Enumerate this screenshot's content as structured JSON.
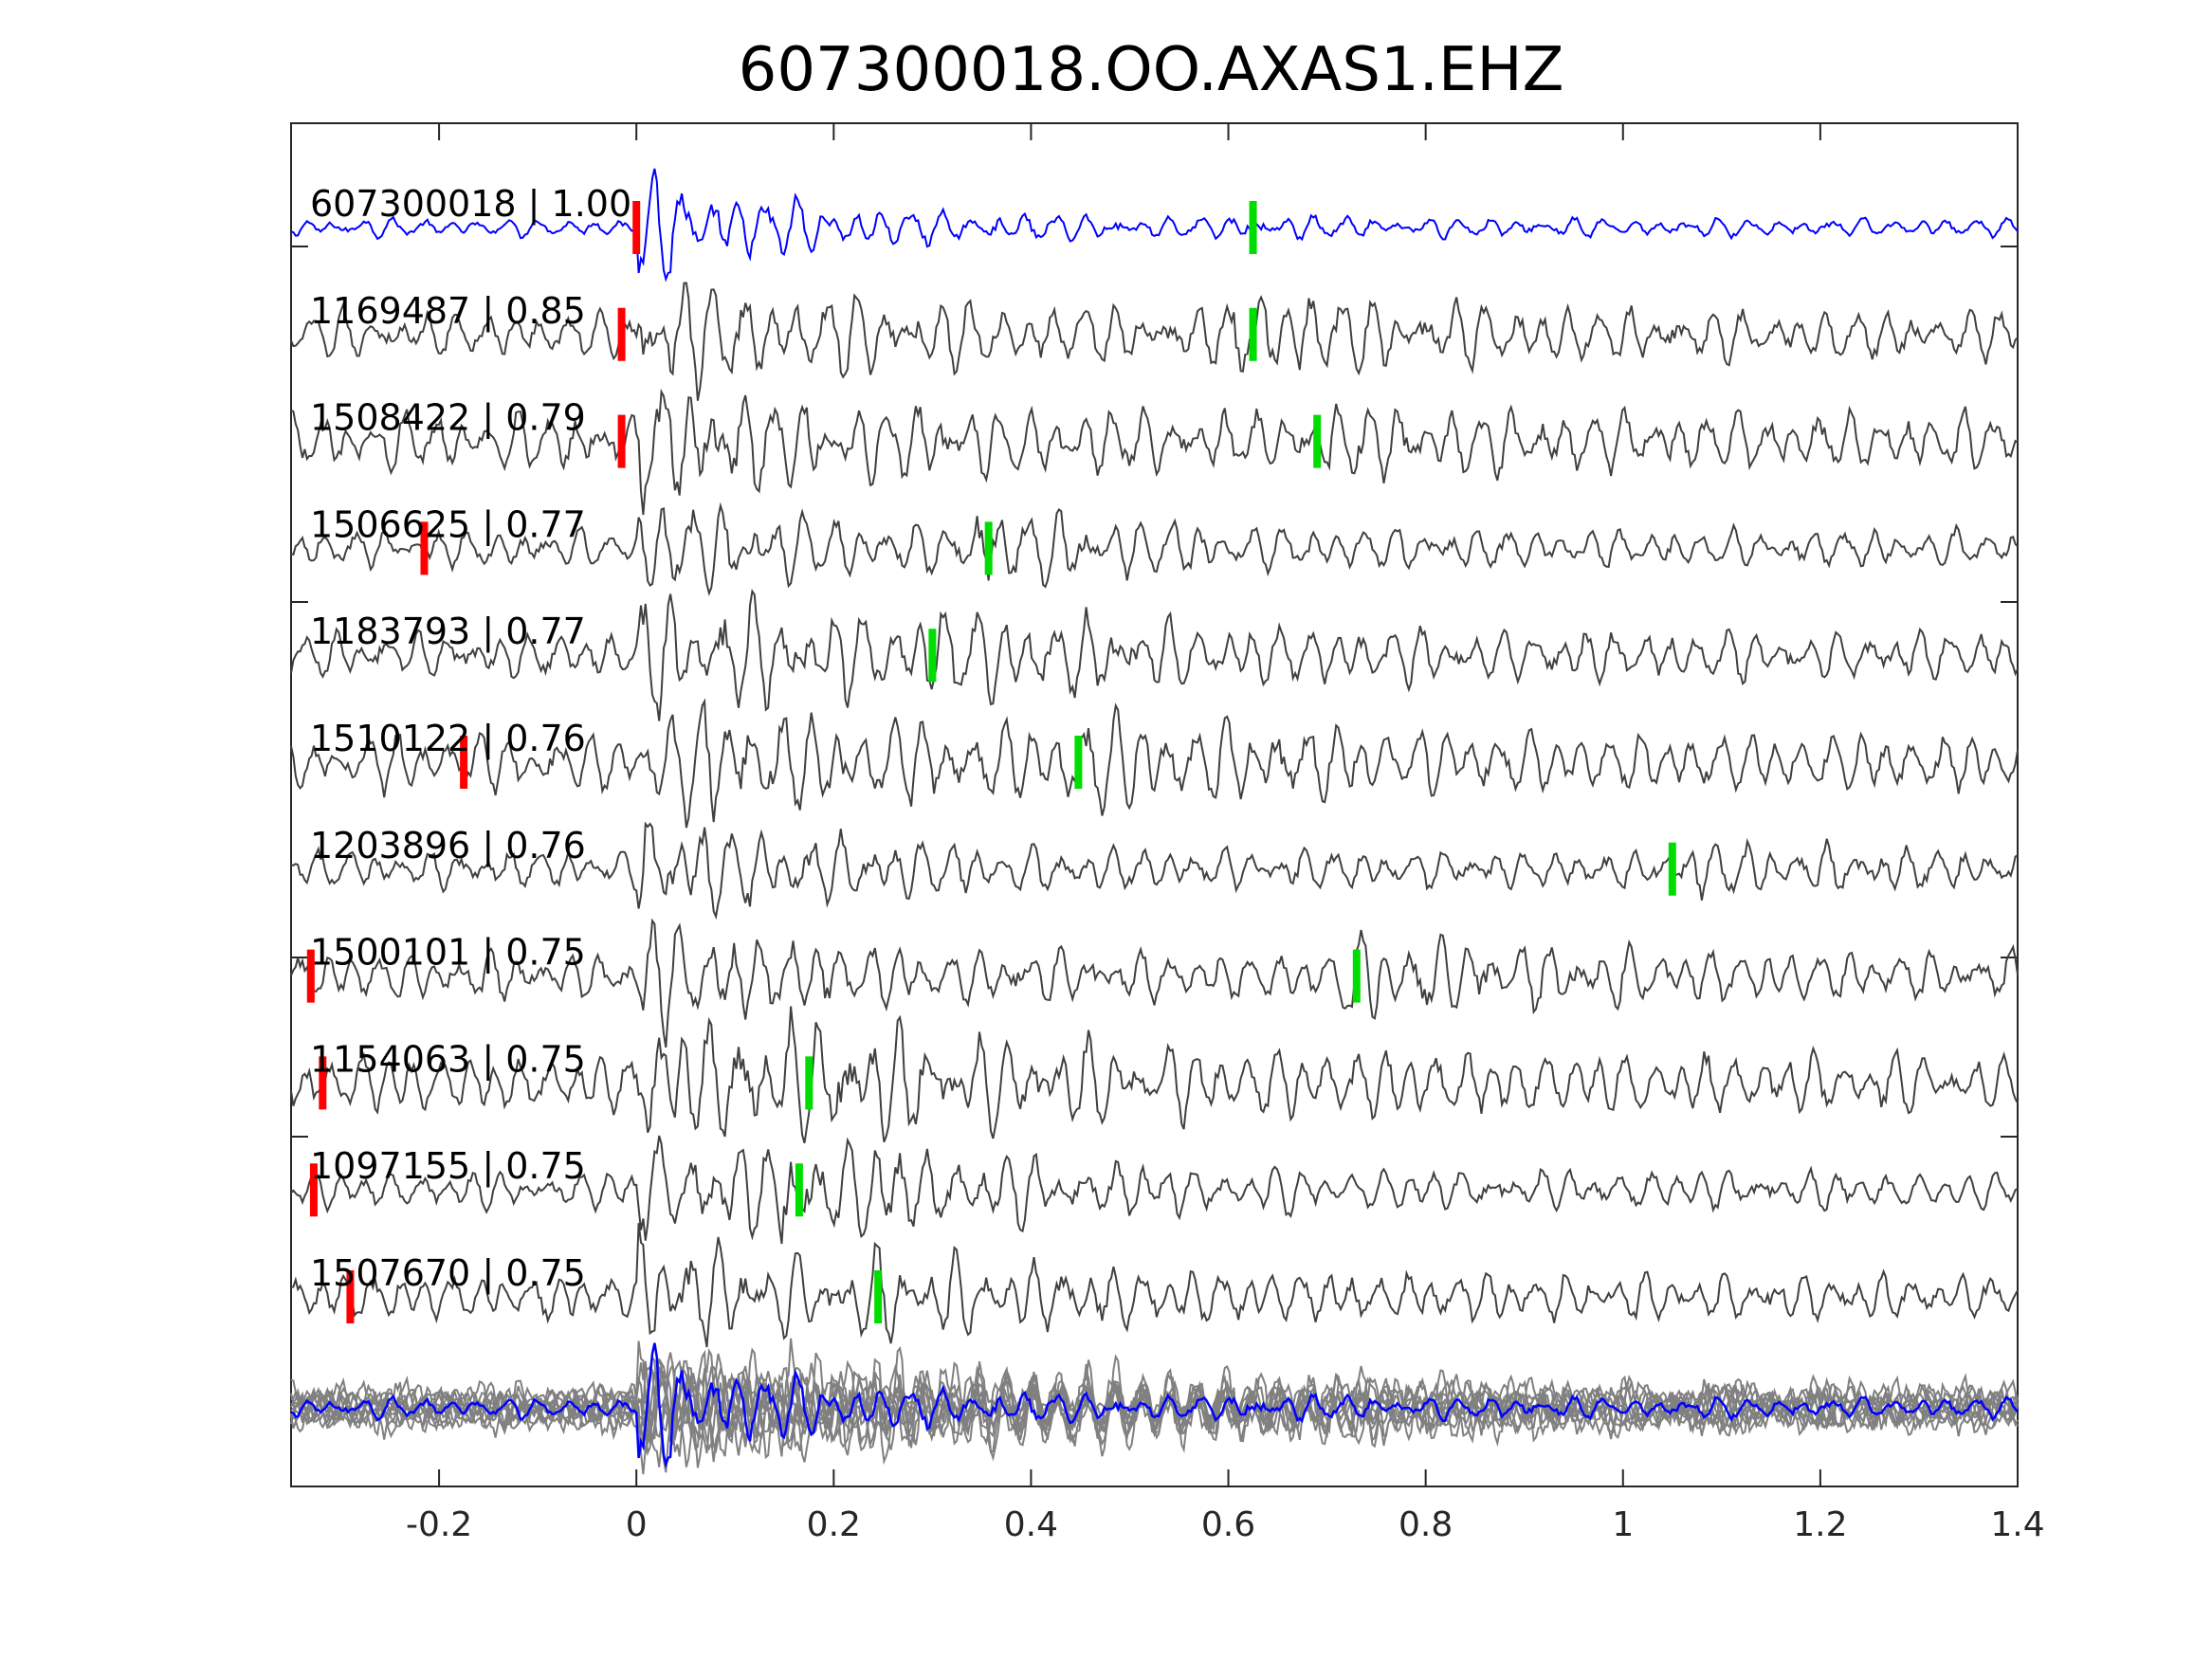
{
  "chart_data": {
    "type": "line",
    "title": "607300018.OO.AXAS1.EHZ",
    "xlabel": "",
    "ylabel": "",
    "xlim": [
      -0.35,
      1.4
    ],
    "xticks": [
      -0.2,
      0,
      0.2,
      0.4,
      0.6,
      0.8,
      1,
      1.2,
      1.4
    ],
    "xtick_labels": [
      "-0.2",
      "0",
      "0.2",
      "0.4",
      "0.6",
      "0.8",
      "1",
      "1.2",
      "1.4"
    ],
    "grid": false,
    "colors": {
      "template": "#0000ff",
      "match": "#404040",
      "stack": "#808080",
      "p_pick": "#ff0000",
      "s_pick": "#00dd00",
      "axis": "#262626"
    },
    "traces": [
      {
        "label": "607300018 | 1.00",
        "p_pick": 0.0,
        "s_pick": 0.625,
        "template": true
      },
      {
        "label": "1169487 | 0.85",
        "p_pick": -0.015,
        "s_pick": 0.625
      },
      {
        "label": "1508422 | 0.79",
        "p_pick": -0.015,
        "s_pick": 0.69
      },
      {
        "label": "1506625 | 0.77",
        "p_pick": -0.215,
        "s_pick": 0.357
      },
      {
        "label": "1183793 | 0.77",
        "p_pick": null,
        "s_pick": 0.3
      },
      {
        "label": "1510122 | 0.76",
        "p_pick": -0.175,
        "s_pick": 0.448
      },
      {
        "label": "1203896 | 0.76",
        "p_pick": null,
        "s_pick": 1.05
      },
      {
        "label": "1500101 | 0.75",
        "p_pick": -0.33,
        "s_pick": 0.73
      },
      {
        "label": "1154063 | 0.75",
        "p_pick": -0.318,
        "s_pick": 0.175
      },
      {
        "label": "1097155 | 0.75",
        "p_pick": -0.327,
        "s_pick": 0.165
      },
      {
        "label": "1507670 | 0.75",
        "p_pick": -0.29,
        "s_pick": 0.245
      }
    ]
  }
}
